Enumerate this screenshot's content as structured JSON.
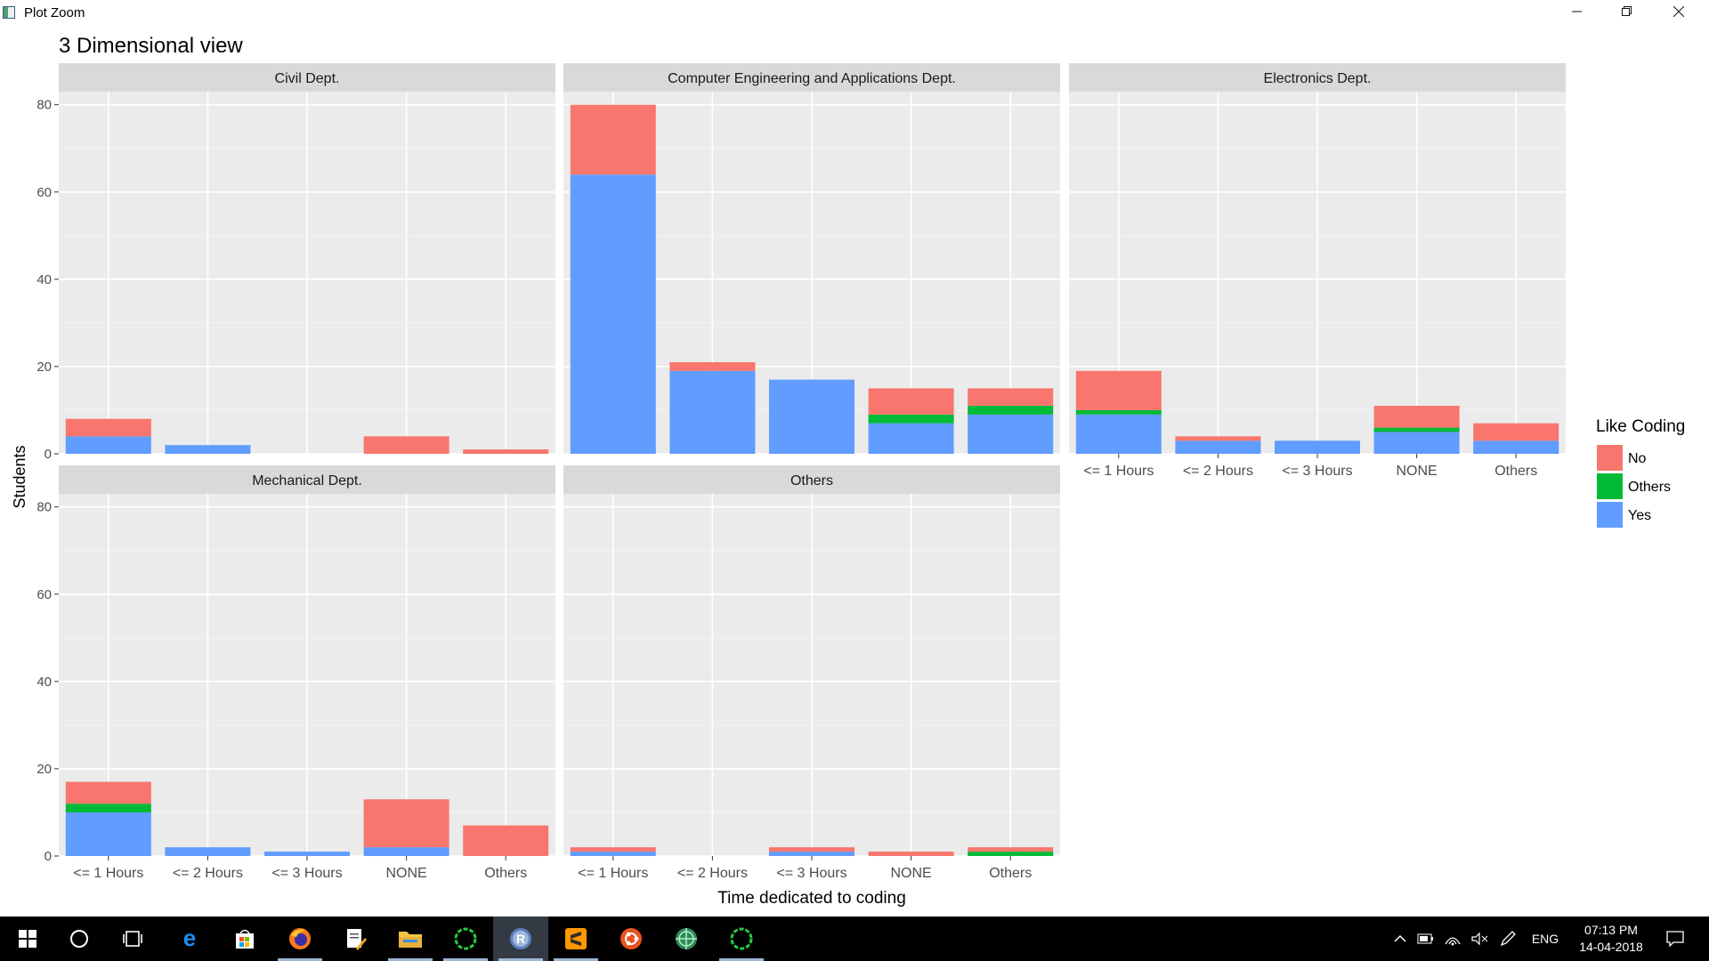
{
  "window": {
    "title": "Plot Zoom"
  },
  "plot": {
    "title": "3 Dimensional view",
    "xlabel": "Time dedicated to coding",
    "ylabel": "Students",
    "legend": {
      "title": "Like Coding",
      "items": [
        {
          "label": "No",
          "color": "#F8766D"
        },
        {
          "label": "Others",
          "color": "#00BA38"
        },
        {
          "label": "Yes",
          "color": "#619CFF"
        }
      ]
    }
  },
  "chart_data": {
    "type": "bar",
    "stacked": true,
    "faceted": true,
    "title": "3 Dimensional view",
    "xlabel": "Time dedicated to coding",
    "ylabel": "Students",
    "ylim": [
      0,
      83
    ],
    "yticks": [
      0,
      20,
      40,
      60,
      80
    ],
    "grid": true,
    "legend_position": "right",
    "categories": [
      "<= 1 Hours",
      "<= 2 Hours",
      "<= 3 Hours",
      "NONE",
      "Others"
    ],
    "series_names": [
      "Yes",
      "Others",
      "No"
    ],
    "series_colors": {
      "No": "#F8766D",
      "Others": "#00BA38",
      "Yes": "#619CFF"
    },
    "facets": [
      {
        "name": "Civil Dept.",
        "values": {
          "Yes": [
            4,
            2,
            0,
            0,
            0
          ],
          "Others": [
            0,
            0,
            0,
            0,
            0
          ],
          "No": [
            4,
            0,
            0,
            4,
            1
          ]
        }
      },
      {
        "name": "Computer Engineering and Applications Dept.",
        "values": {
          "Yes": [
            64,
            19,
            17,
            7,
            9
          ],
          "Others": [
            0,
            0,
            0,
            2,
            2
          ],
          "No": [
            16,
            2,
            0,
            6,
            4
          ]
        }
      },
      {
        "name": "Electronics Dept.",
        "values": {
          "Yes": [
            9,
            3,
            3,
            5,
            3
          ],
          "Others": [
            1,
            0,
            0,
            1,
            0
          ],
          "No": [
            9,
            1,
            0,
            5,
            4
          ]
        }
      },
      {
        "name": "Mechanical Dept.",
        "values": {
          "Yes": [
            10,
            2,
            1,
            2,
            0
          ],
          "Others": [
            2,
            0,
            0,
            0,
            0
          ],
          "No": [
            5,
            0,
            0,
            11,
            7
          ]
        }
      },
      {
        "name": "Others",
        "values": {
          "Yes": [
            1,
            0,
            1,
            0,
            0
          ],
          "Others": [
            0,
            0,
            0,
            0,
            1
          ],
          "No": [
            1,
            0,
            1,
            1,
            1
          ]
        }
      }
    ]
  },
  "taskbar": {
    "icons": [
      "windows-start-icon",
      "cortana-search-icon",
      "task-view-icon",
      "edge-icon",
      "store-icon",
      "firefox-icon",
      "pdf-editor-icon",
      "file-explorer-icon",
      "rstudio-ring-icon",
      "r-icon",
      "sublime-text-icon",
      "ubuntu-icon",
      "network-globe-icon",
      "rstudio-ring-icon-2"
    ],
    "tray": {
      "language": "ENG",
      "time": "07:13 PM",
      "date": "14-04-2018"
    }
  }
}
